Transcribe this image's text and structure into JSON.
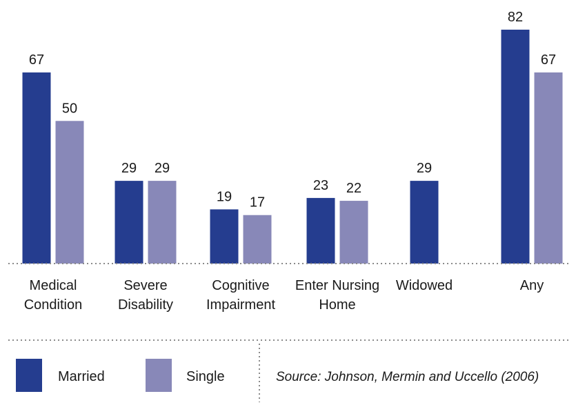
{
  "chart_data": {
    "type": "bar",
    "categories": [
      [
        "Medical",
        "Condition"
      ],
      [
        "Severe",
        "Disability"
      ],
      [
        "Cognitive",
        "Impairment"
      ],
      [
        "Enter Nursing",
        "Home"
      ],
      [
        "Widowed"
      ],
      [
        "Any"
      ]
    ],
    "series": [
      {
        "name": "Married",
        "color": "#253d8f",
        "values": [
          67,
          29,
          19,
          23,
          29,
          82
        ]
      },
      {
        "name": "Single",
        "color": "#8888b8",
        "values": [
          50,
          29,
          17,
          22,
          null,
          67
        ]
      }
    ],
    "ylim": [
      0,
      82
    ],
    "grid": false,
    "legend_position": "bottom-left",
    "source": "Source: Johnson, Mermin and Uccello (2006)"
  }
}
